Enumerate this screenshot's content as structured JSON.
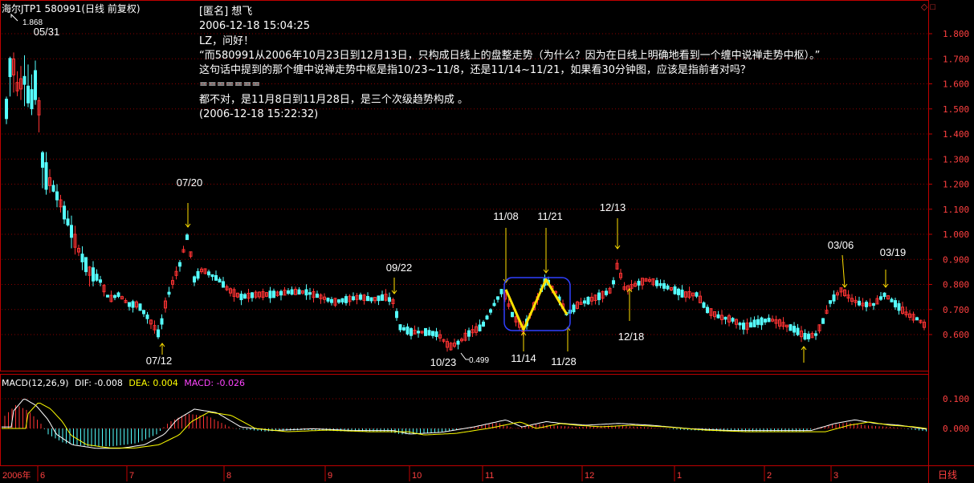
{
  "header": {
    "title": "海尔JTP1 580991(日线 前复权)",
    "corner_icons": "◇ □"
  },
  "post": {
    "author": "[匿名] 想飞",
    "time1": "2006-12-18 15:04:25",
    "greet": "LZ，问好！",
    "quote": "“而580991从2006年10月23日到12月13日，只构成日线上的盘整走势（为什么？因为在日线上明确地看到一个缠中说禅走势中枢）。”",
    "question": "这句话中提到的那个缠中说禅走势中枢是指10/23~11/8，还是11/14~11/21，如果看30分钟图，应该是指前者对吗？",
    "separator": "=======",
    "answer": "都不对，是11月8日到11月28日，是三个次级趋势构成 。",
    "time2": "(2006-12-18 15:22:32)"
  },
  "macd_header": {
    "label": "MACD(12,26,9)",
    "dif": "DIF: -0.008",
    "dea": "DEA: 0.004",
    "macd": "MACD: -0.026"
  },
  "time_axis": {
    "year_label": "2006年",
    "labels": [
      "6",
      "7",
      "8",
      "9",
      "10",
      "11",
      "12",
      "1",
      "2",
      "3"
    ],
    "period": "日线"
  },
  "chart_data": {
    "type": "candlestick",
    "y_price_ticks": [
      "1.800",
      "1.700",
      "1.600",
      "1.500",
      "1.400",
      "1.300",
      "1.200",
      "1.100",
      "1.000",
      "0.900",
      "0.800",
      "0.700",
      "0.600"
    ],
    "y_macd_ticks": [
      "0.100",
      "0.000"
    ],
    "annotations": [
      {
        "text": "05/31",
        "kind": "high"
      },
      {
        "text": "07/20",
        "kind": "high"
      },
      {
        "text": "07/12",
        "kind": "low"
      },
      {
        "text": "09/22",
        "kind": "high"
      },
      {
        "text": "10/23",
        "kind": "low"
      },
      {
        "text": "11/08",
        "kind": "high"
      },
      {
        "text": "11/14",
        "kind": "low"
      },
      {
        "text": "11/21",
        "kind": "high"
      },
      {
        "text": "11/28",
        "kind": "low"
      },
      {
        "text": "12/13",
        "kind": "high"
      },
      {
        "text": "12/18",
        "kind": "low"
      },
      {
        "text": "03/06",
        "kind": "high"
      },
      {
        "text": "03/19",
        "kind": "high"
      }
    ],
    "price_labels": {
      "high": "1.868",
      "low": "0.499"
    },
    "segment_points": [
      {
        "date": "11/08",
        "price": 0.78
      },
      {
        "date": "11/14",
        "price": 0.62
      },
      {
        "date": "11/21",
        "price": 0.82
      },
      {
        "date": "11/28",
        "price": 0.68
      }
    ],
    "colors": {
      "up": "#ff3333",
      "down": "#55ffff",
      "dif": "#ffffff",
      "dea": "#ffff00",
      "zhongshu_box": "#3040ff",
      "segment": "#ffe000",
      "grid": "#8b0000"
    }
  }
}
